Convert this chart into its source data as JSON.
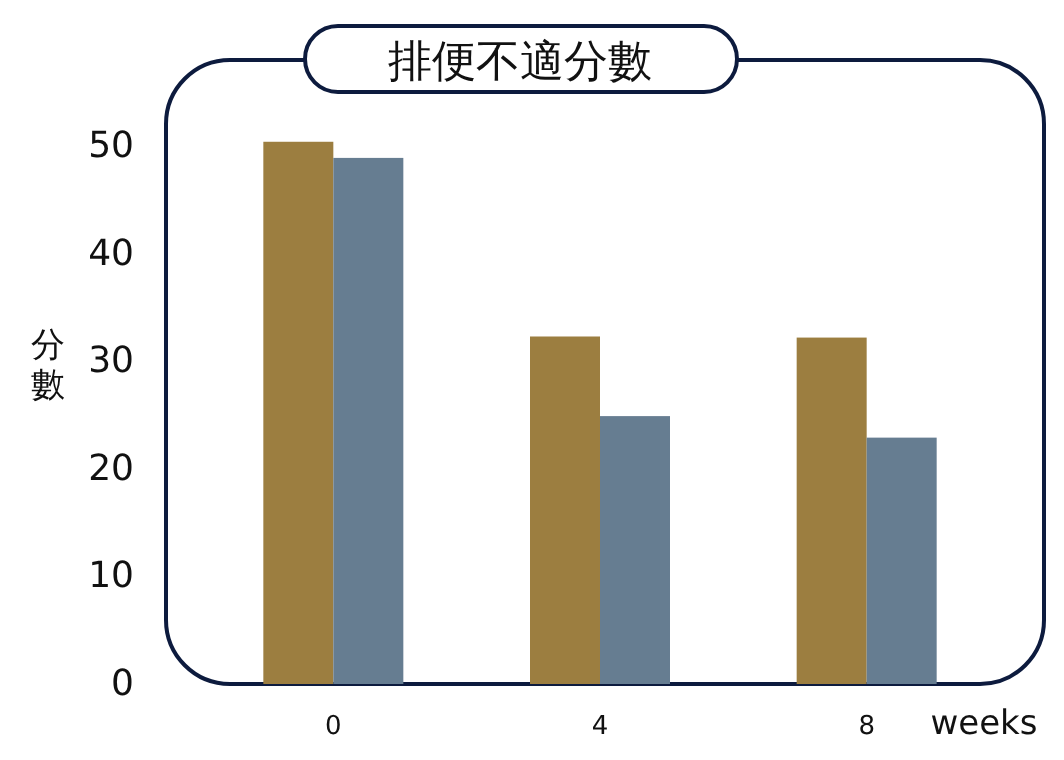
{
  "chart_data": {
    "type": "bar",
    "title": "排便不適分數",
    "xlabel": "weeks",
    "ylabel": "分數",
    "categories": [
      "0",
      "4",
      "8"
    ],
    "series": [
      {
        "color": "#9c7e40",
        "values": [
          50.4,
          32.3,
          32.2
        ]
      },
      {
        "color": "#667d91",
        "values": [
          48.9,
          24.9,
          22.9
        ]
      }
    ],
    "ylim": [
      0,
      58
    ],
    "yticks": [
      0,
      10,
      20,
      30,
      40,
      50
    ],
    "grid": false
  }
}
